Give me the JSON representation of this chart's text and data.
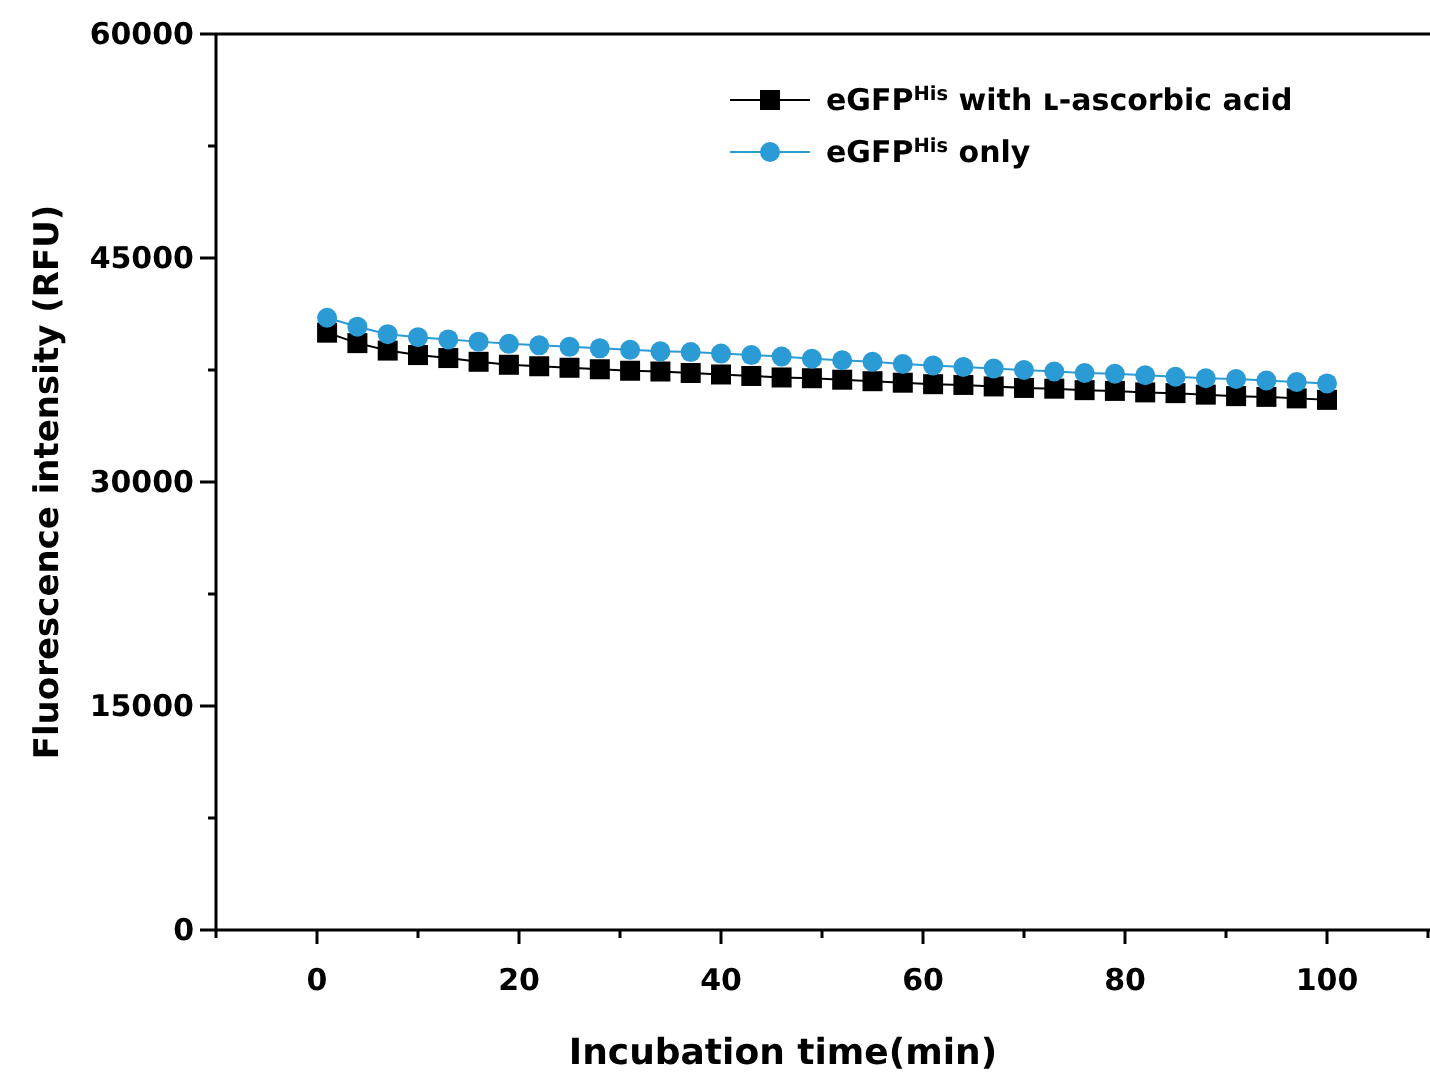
{
  "chart_data": {
    "type": "line",
    "xlabel": "Incubation time(min)",
    "ylabel": "Fluorescence intensity (RFU)",
    "xlim": [
      -10,
      110
    ],
    "ylim": [
      0,
      60000
    ],
    "xticks": [
      {
        "value": -10,
        "label": null
      },
      0,
      {
        "value": 10,
        "label": null
      },
      20,
      {
        "value": 30,
        "label": null
      },
      40,
      {
        "value": 50,
        "label": null
      },
      60,
      {
        "value": 70,
        "label": null
      },
      80,
      {
        "value": 90,
        "label": null
      },
      100,
      {
        "value": 110,
        "label": null
      }
    ],
    "yticks": [
      0,
      {
        "value": 7500,
        "label": null
      },
      15000,
      {
        "value": 22500,
        "label": null
      },
      30000,
      {
        "value": 37500,
        "label": null
      },
      45000,
      {
        "value": 52500,
        "label": null
      },
      60000
    ],
    "x": [
      1,
      4,
      7,
      10,
      13,
      16,
      19,
      22,
      25,
      28,
      31,
      34,
      37,
      40,
      43,
      46,
      49,
      52,
      55,
      58,
      61,
      64,
      67,
      70,
      73,
      76,
      79,
      82,
      85,
      88,
      91,
      94,
      97,
      100
    ],
    "legend": "top right",
    "grid": false,
    "series": [
      {
        "name": "eGFP$^{His}$ with ʟ-ascorbic acid",
        "color": "#000000",
        "marker": "square",
        "values": [
          40000,
          39300,
          38800,
          38500,
          38300,
          38050,
          37850,
          37750,
          37650,
          37550,
          37450,
          37400,
          37300,
          37200,
          37100,
          37000,
          36950,
          36850,
          36750,
          36650,
          36550,
          36500,
          36400,
          36300,
          36250,
          36150,
          36100,
          36000,
          35950,
          35850,
          35750,
          35700,
          35600,
          35500
        ]
      },
      {
        "name": "eGFP$^{His}$ only",
        "color": "#2b9bd6",
        "marker": "circle",
        "values": [
          41000,
          40400,
          39900,
          39700,
          39550,
          39400,
          39250,
          39150,
          39050,
          38950,
          38850,
          38750,
          38700,
          38600,
          38500,
          38400,
          38250,
          38150,
          38050,
          37900,
          37800,
          37700,
          37600,
          37500,
          37400,
          37300,
          37250,
          37150,
          37050,
          36950,
          36900,
          36800,
          36700,
          36600
        ]
      }
    ]
  }
}
